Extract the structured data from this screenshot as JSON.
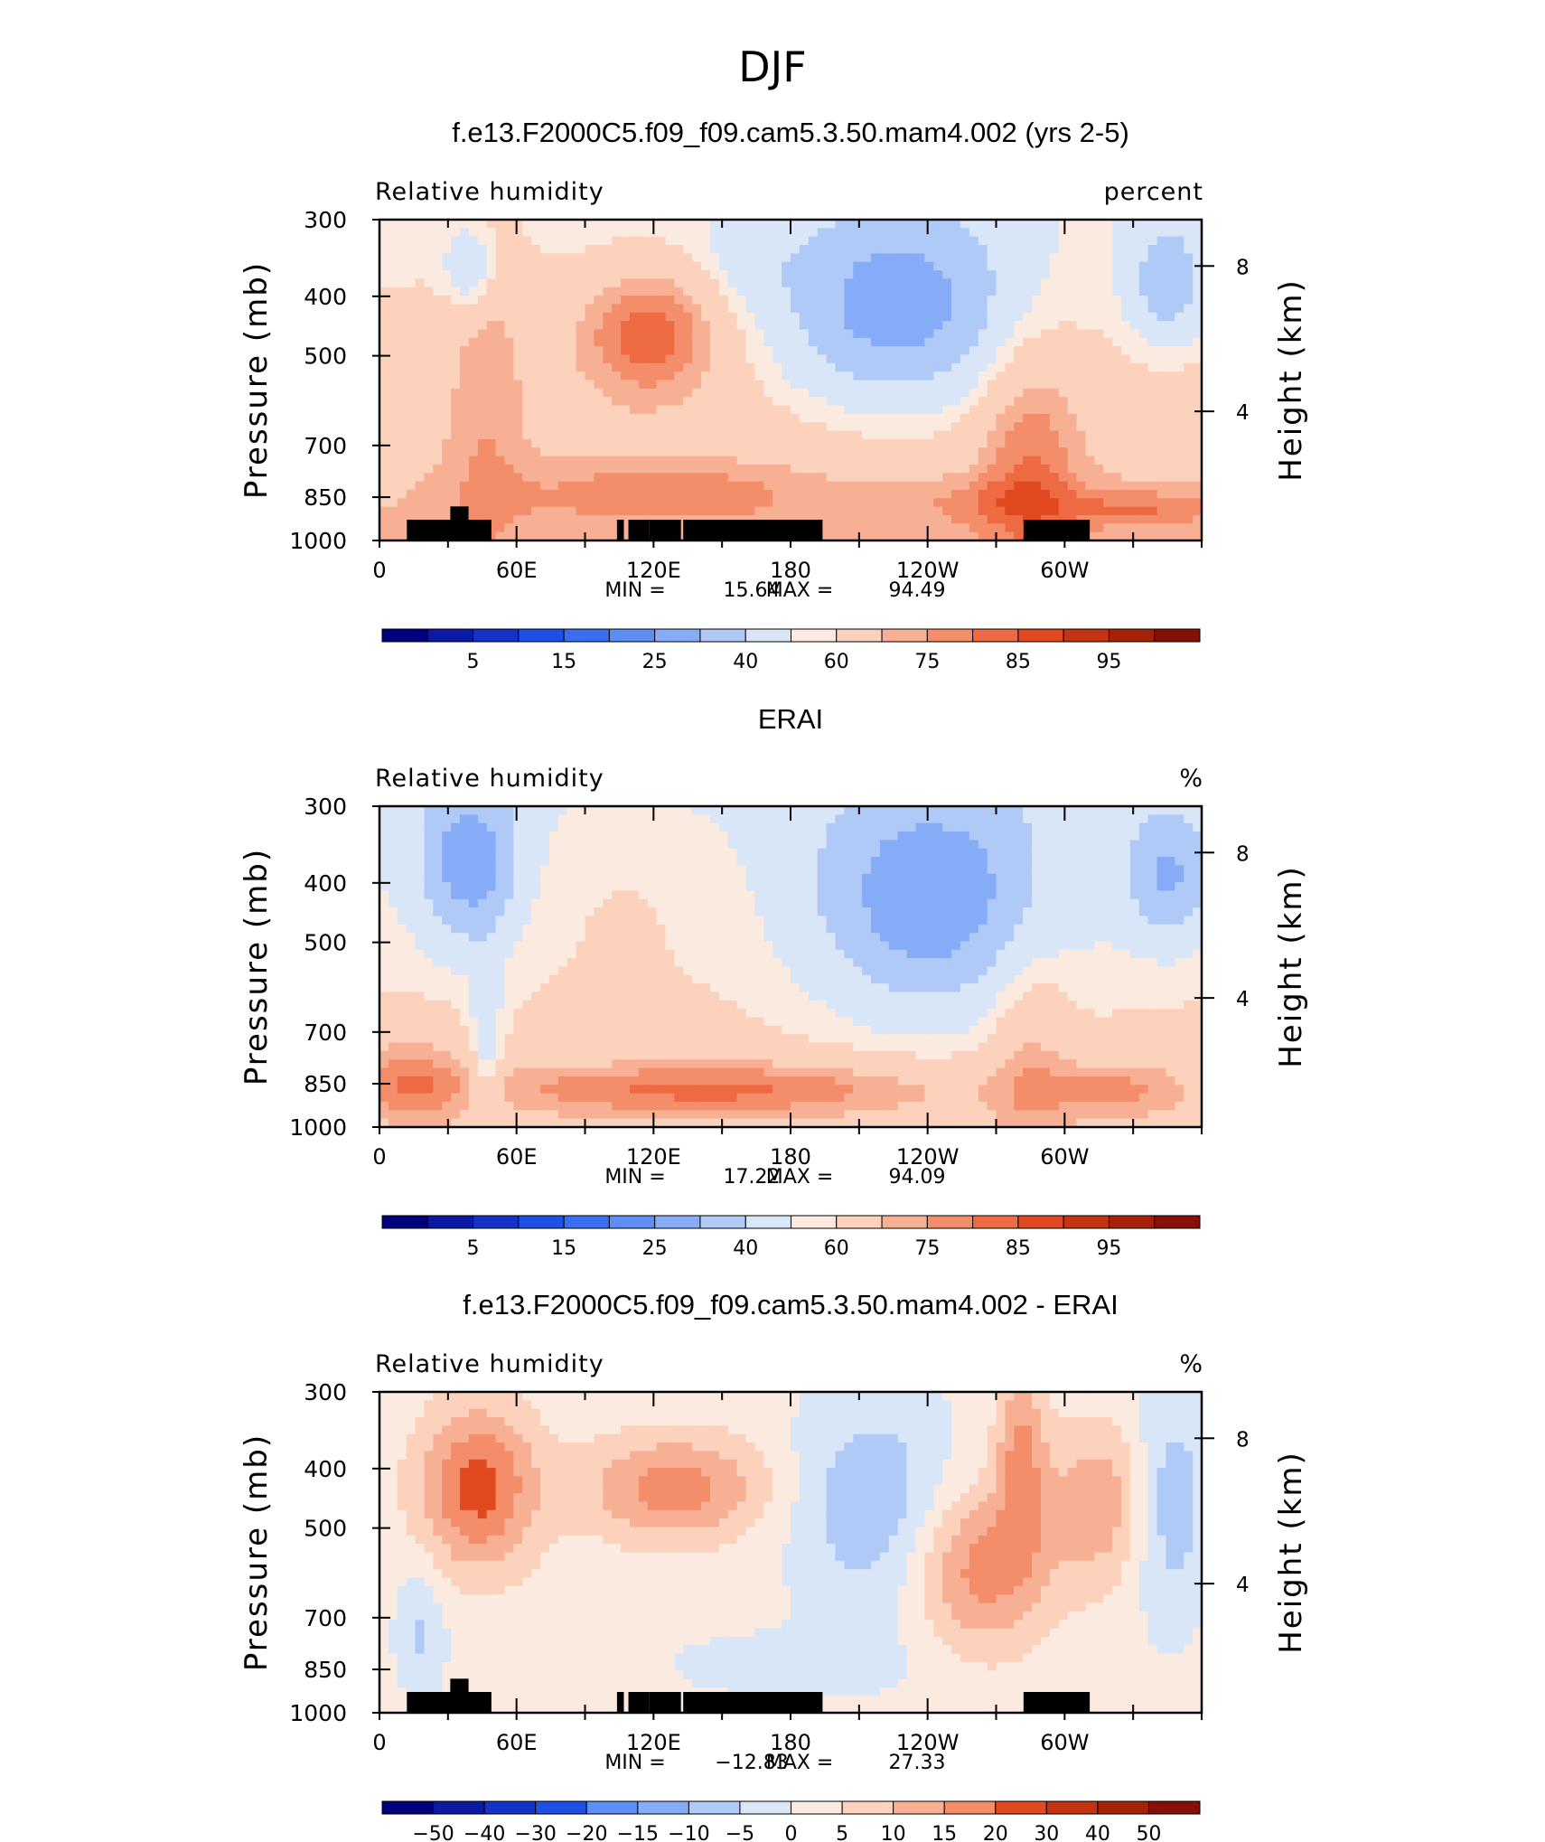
{
  "suptitle": "DJF",
  "chart_data": [
    {
      "type": "heatmap",
      "title": "f.e13.F2000C5.f09_f09.cam5.3.50.mam4.002 (yrs 2-5)",
      "left_label": "Relative humidity",
      "right_label": "percent",
      "ylabel": "Pressure (mb)",
      "ylabel_right": "Height (km)",
      "y_ticks": [
        "300",
        "400",
        "500",
        "700",
        "850",
        "1000"
      ],
      "y_ticks_right": [
        "8",
        "4"
      ],
      "x_ticks": [
        "0",
        "60E",
        "120E",
        "180",
        "120W",
        "60W"
      ],
      "stats": {
        "min_label": "MIN =",
        "min": "15.64",
        "max_label": "MAX =",
        "max": "94.49"
      },
      "colorbar_labels": [
        "5",
        "15",
        "25",
        "40",
        "60",
        "75",
        "85",
        "95"
      ]
    },
    {
      "type": "heatmap",
      "title": "ERAI",
      "left_label": "Relative humidity",
      "right_label": "%",
      "ylabel": "Pressure (mb)",
      "ylabel_right": "Height (km)",
      "y_ticks": [
        "300",
        "400",
        "500",
        "700",
        "850",
        "1000"
      ],
      "y_ticks_right": [
        "8",
        "4"
      ],
      "x_ticks": [
        "0",
        "60E",
        "120E",
        "180",
        "120W",
        "60W"
      ],
      "stats": {
        "min_label": "MIN =",
        "min": "17.22",
        "max_label": "MAX =",
        "max": "94.09"
      },
      "colorbar_labels": [
        "5",
        "15",
        "25",
        "40",
        "60",
        "75",
        "85",
        "95"
      ]
    },
    {
      "type": "heatmap",
      "title": "f.e13.F2000C5.f09_f09.cam5.3.50.mam4.002 - ERAI",
      "left_label": "Relative humidity",
      "right_label": "%",
      "ylabel": "Pressure (mb)",
      "ylabel_right": "Height (km)",
      "y_ticks": [
        "300",
        "400",
        "500",
        "700",
        "850",
        "1000"
      ],
      "y_ticks_right": [
        "8",
        "4"
      ],
      "x_ticks": [
        "0",
        "60E",
        "120E",
        "180",
        "120W",
        "60W"
      ],
      "stats": {
        "min_label": "MIN =",
        "min": "−12.83",
        "max_label": "MAX =",
        "max": "27.33"
      },
      "colorbar_labels": [
        "−50",
        "−40",
        "−30",
        "−20",
        "−15",
        "−10",
        "−5",
        "0",
        "5",
        "10",
        "15",
        "20",
        "30",
        "40",
        "50"
      ]
    }
  ],
  "palette": [
    "#00007a",
    "#0a1aa3",
    "#1232c9",
    "#1e50e6",
    "#3a6ef2",
    "#5d8ef6",
    "#86acf7",
    "#b0caf7",
    "#d8e6f8",
    "#fbeadf",
    "#fcd2bc",
    "#f8b094",
    "#f48d69",
    "#ee6a42",
    "#e14a20",
    "#c43410",
    "#a52208",
    "#861005"
  ],
  "mask_color": "#000000"
}
